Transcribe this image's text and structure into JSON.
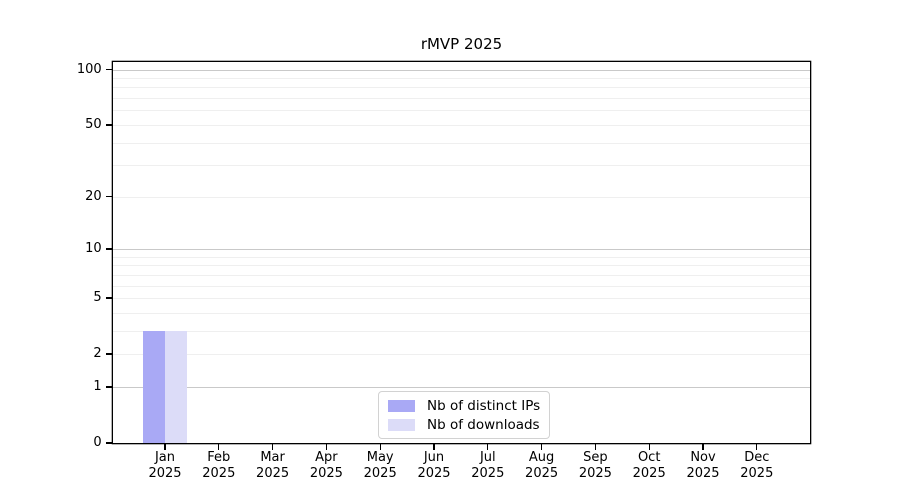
{
  "chart_data": {
    "type": "bar",
    "title": "rMVP 2025",
    "categories": [
      "Jan 2025",
      "Feb 2025",
      "Mar 2025",
      "Apr 2025",
      "May 2025",
      "Jun 2025",
      "Jul 2025",
      "Aug 2025",
      "Sep 2025",
      "Oct 2025",
      "Nov 2025",
      "Dec 2025"
    ],
    "series": [
      {
        "name": "Nb of distinct IPs",
        "color": "#a9a9f5",
        "values": [
          3,
          0,
          0,
          0,
          0,
          0,
          0,
          0,
          0,
          0,
          0,
          0
        ]
      },
      {
        "name": "Nb of downloads",
        "color": "#dcdcf8",
        "values": [
          3,
          0,
          0,
          0,
          0,
          0,
          0,
          0,
          0,
          0,
          0,
          0
        ]
      }
    ],
    "yscale": "log1p",
    "ylim": [
      0,
      110
    ],
    "yticks": [
      0,
      1,
      2,
      5,
      10,
      20,
      50,
      100
    ],
    "ygrid_major": [
      1,
      10,
      100
    ],
    "ygrid_minor": [
      2,
      3,
      4,
      5,
      6,
      7,
      8,
      9,
      20,
      30,
      40,
      50,
      60,
      70,
      80,
      90
    ],
    "grid": "horizontal",
    "legend_position": "lower center"
  }
}
